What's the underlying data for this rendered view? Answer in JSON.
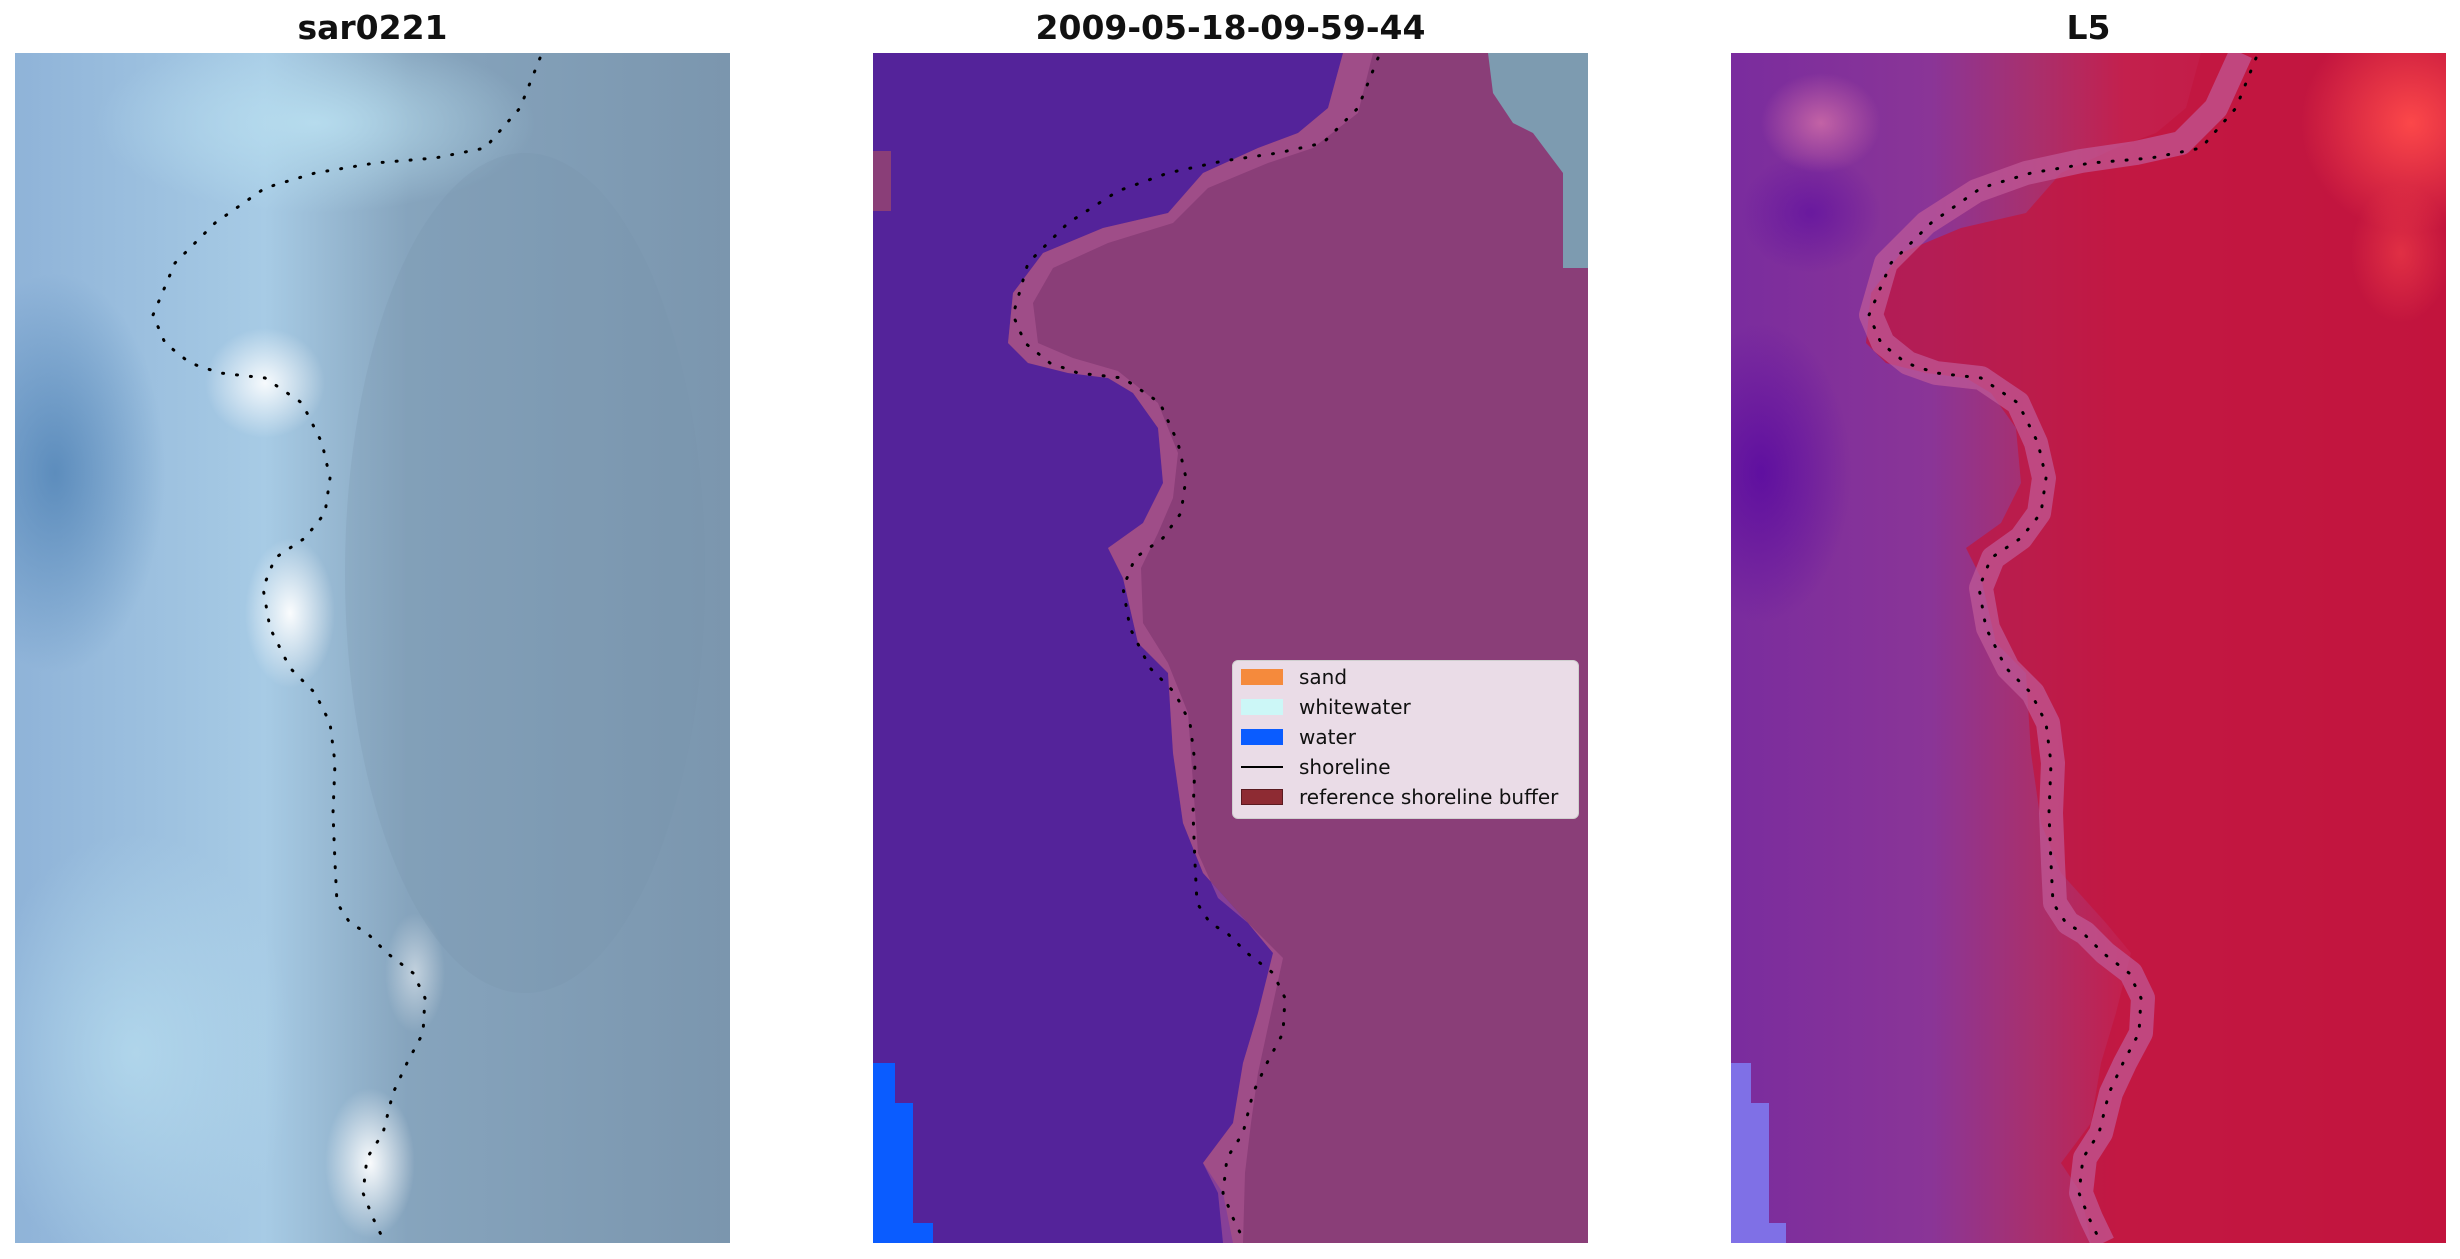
{
  "panels": [
    {
      "title": "sar0221"
    },
    {
      "title": "2009-05-18-09-59-44"
    },
    {
      "title": "L5"
    }
  ],
  "legend": {
    "items": [
      {
        "label": "sand",
        "color": "#f58a3c",
        "kind": "patch"
      },
      {
        "label": "whitewater",
        "color": "#ccf7f7",
        "kind": "patch"
      },
      {
        "label": "water",
        "color": "#0a5cff",
        "kind": "patch"
      },
      {
        "label": "shoreline",
        "color": "#000000",
        "kind": "line"
      },
      {
        "label": "reference shoreline buffer",
        "color": "#8e2b33",
        "kind": "patch"
      }
    ]
  },
  "colors": {
    "water_class": "#54239a",
    "buffer_class": "#8a3e78",
    "true_water": "#0a5cff",
    "rgb_land": "#7d9bb4",
    "rgb_water": "#9cc3e4",
    "index_water": "#7a2c9e",
    "index_land": "#c4163b"
  }
}
